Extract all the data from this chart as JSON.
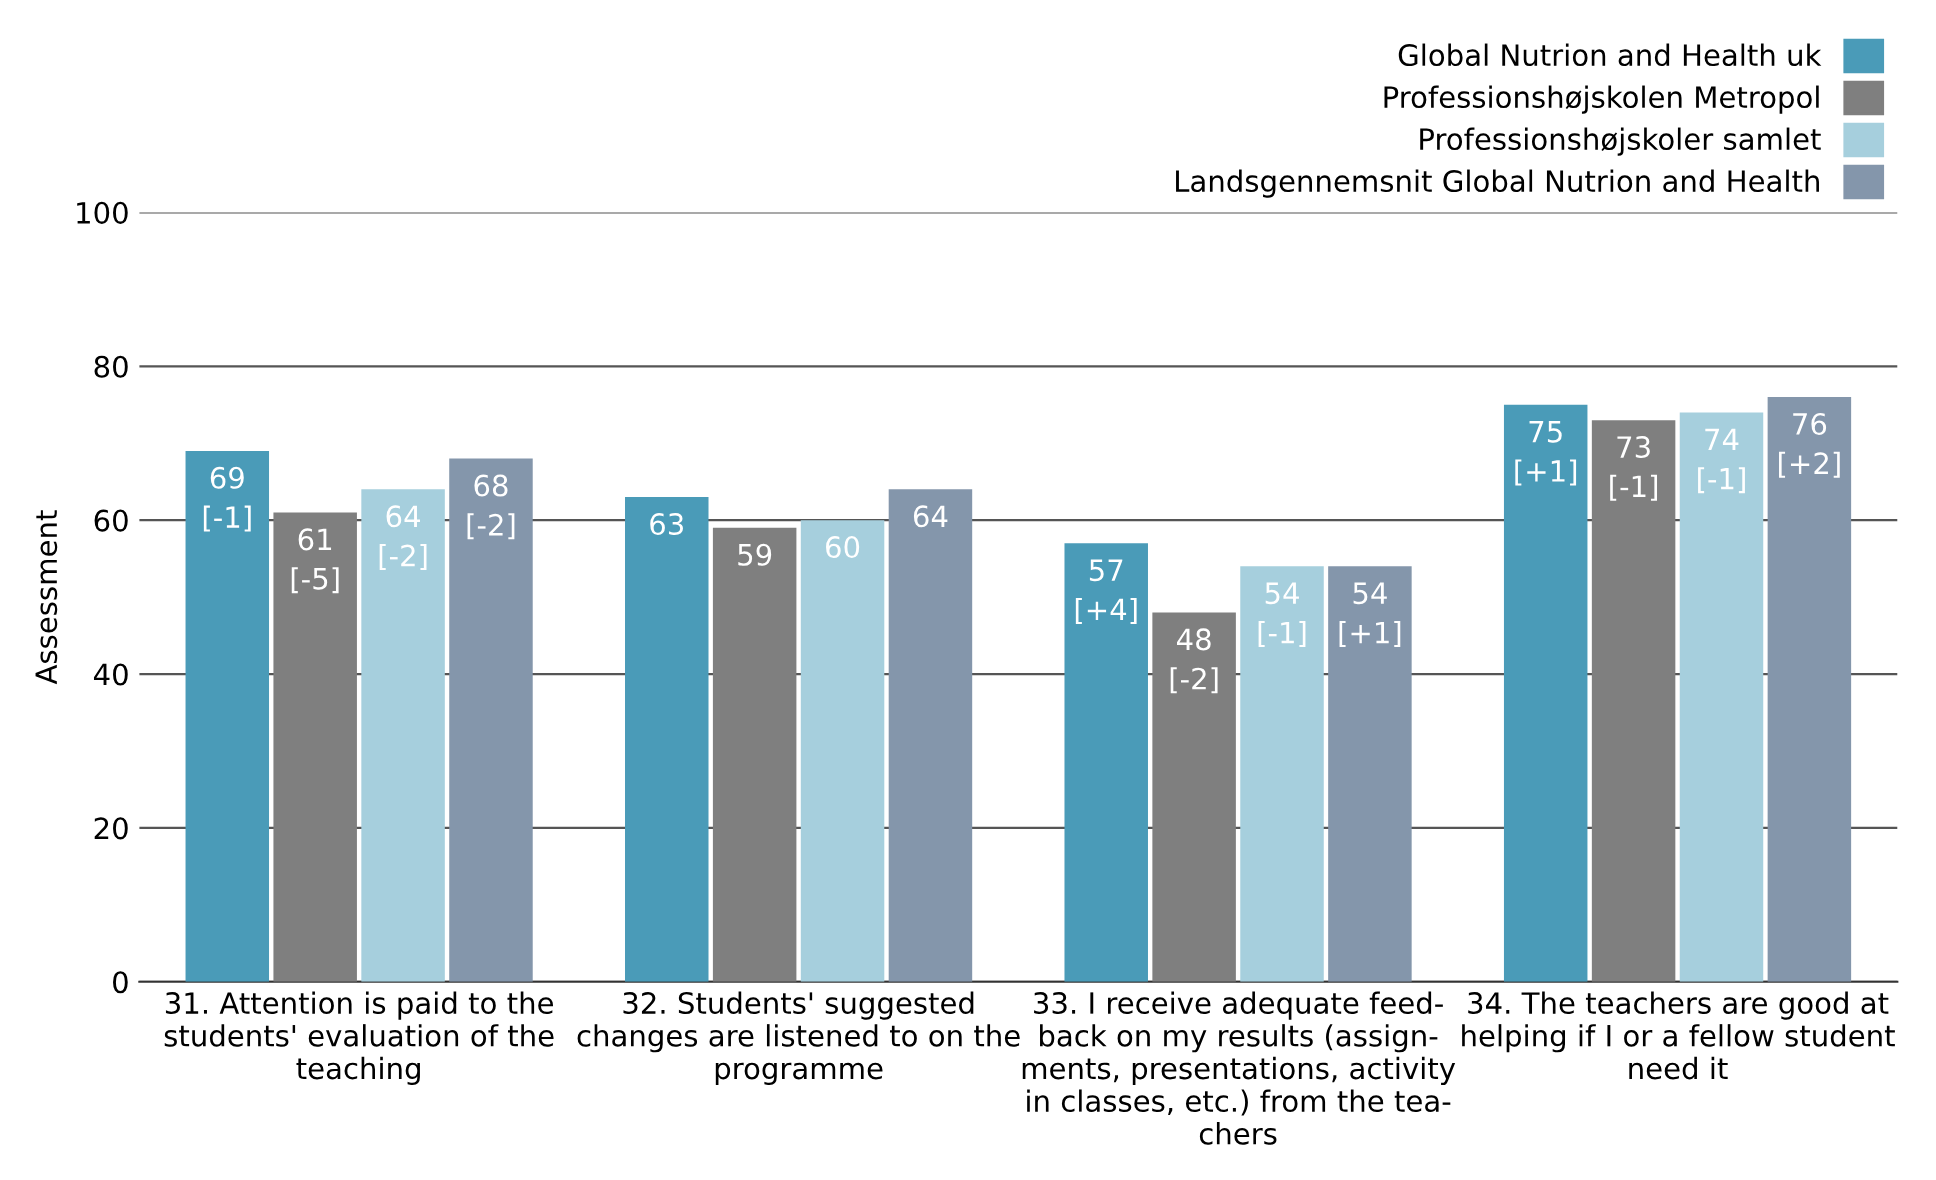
{
  "chart_data": {
    "type": "bar",
    "ylabel": "Assessment",
    "categories": [
      "31. Attention is paid to the\nstudents' evaluation of the\nteaching",
      "32. Students' suggested\nchanges are listened to on the\nprogramme",
      "33. I receive adequate feed-\nback on my results (assign-\nments, presentations, activity\nin classes, etc.) from the tea-\nchers",
      "34. The teachers are good at\nhelping if I or a fellow student\nneed it"
    ],
    "series": [
      {
        "name": "Global Nutrion and Health uk",
        "color": "#4a9bb8",
        "values": [
          69,
          63,
          57,
          75
        ],
        "value_labels": [
          "69\n[-1]",
          "63",
          "57\n[+4]",
          "75\n[+1]"
        ]
      },
      {
        "name": "Professionshøjskolen Metropol",
        "color": "#7f7f7f",
        "values": [
          61,
          59,
          48,
          73
        ],
        "value_labels": [
          "61\n[-5]",
          "59",
          "48\n[-2]",
          "73\n[-1]"
        ]
      },
      {
        "name": "Professionshøjskoler samlet",
        "color": "#a6cfdd",
        "values": [
          64,
          60,
          54,
          74
        ],
        "value_labels": [
          "64\n[-2]",
          "60",
          "54\n[-1]",
          "74\n[-1]"
        ]
      },
      {
        "name": "Landsgennemsnit Global Nutrion and Health",
        "color": "#8496ab",
        "values": [
          68,
          64,
          54,
          76
        ],
        "value_labels": [
          "68\n[-2]",
          "64",
          "54\n[+1]",
          "76\n[+2]"
        ]
      }
    ],
    "ylim": [
      0,
      100
    ],
    "yticks": [
      0,
      20,
      40,
      60,
      80,
      100
    ],
    "grid": "y",
    "legend": "top right"
  }
}
